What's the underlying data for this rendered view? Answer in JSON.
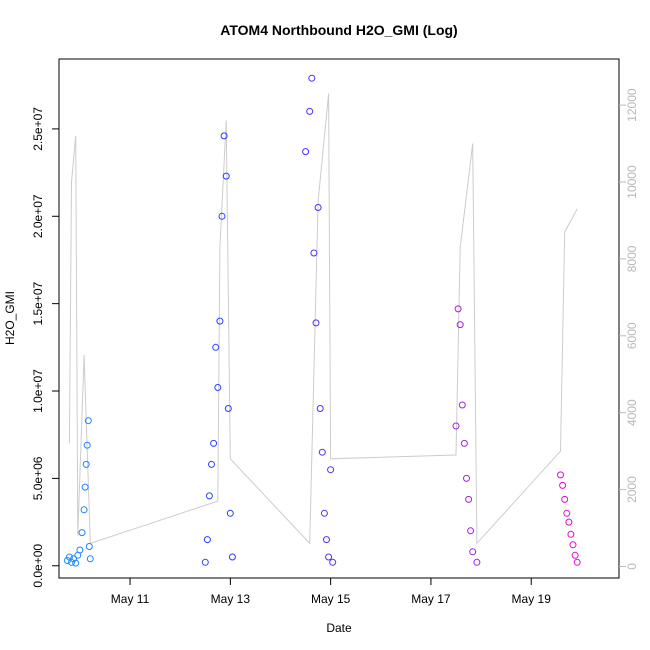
{
  "chart_data": {
    "type": "scatter",
    "title": "ATOM4 Northbound H2O_GMI (Log)",
    "xlabel": "Date",
    "ylabel": "H2O_GMI",
    "x_ticks": [
      "May 11",
      "May 13",
      "May 15",
      "May 17",
      "May 19"
    ],
    "y_ticks": [
      "0.0e+00",
      "5.0e+06",
      "1.0e+07",
      "1.5e+07",
      "2.0e+07",
      "2.5e+07"
    ],
    "y2_ticks": [
      "0",
      "2000",
      "4000",
      "6000",
      "8000",
      "10000",
      "12000"
    ],
    "xlim": [
      "2018-05-09T14:00",
      "2018-05-20T18:00"
    ],
    "ylim": [
      -700000,
      29000000
    ],
    "y2lim": [
      -300,
      13200
    ],
    "legend": "none",
    "grid": false,
    "colors": {
      "altitude_line": "#cccccc",
      "gradient_start": "#1e90ff",
      "gradient_mid": "#3030ff",
      "gradient_late": "#8a2be2",
      "gradient_end": "#ff00cc",
      "right_axis": "#b8b8b8"
    },
    "series": [
      {
        "values": [
          {
            "x": "2018-05-09T18:00",
            "y": 300000
          },
          {
            "x": "2018-05-09T19:00",
            "y": 500000
          },
          {
            "x": "2018-05-09T20:00",
            "y": 200000
          },
          {
            "x": "2018-05-09T21:00",
            "y": 400000
          },
          {
            "x": "2018-05-09T22:00",
            "y": 150000
          },
          {
            "x": "2018-05-09T23:00",
            "y": 600000
          },
          {
            "x": "2018-05-10T00:00",
            "y": 900000
          },
          {
            "x": "2018-05-10T01:00",
            "y": 1900000
          },
          {
            "x": "2018-05-10T02:00",
            "y": 3200000
          },
          {
            "x": "2018-05-10T02:30",
            "y": 4500000
          },
          {
            "x": "2018-05-10T03:00",
            "y": 5800000
          },
          {
            "x": "2018-05-10T03:30",
            "y": 6900000
          },
          {
            "x": "2018-05-10T04:00",
            "y": 8300000
          },
          {
            "x": "2018-05-10T04:30",
            "y": 1100000
          },
          {
            "x": "2018-05-10T05:00",
            "y": 400000
          },
          {
            "x": "2018-05-12T12:00",
            "y": 200000
          },
          {
            "x": "2018-05-12T13:00",
            "y": 1500000
          },
          {
            "x": "2018-05-12T14:00",
            "y": 4000000
          },
          {
            "x": "2018-05-12T15:00",
            "y": 5800000
          },
          {
            "x": "2018-05-12T16:00",
            "y": 7000000
          },
          {
            "x": "2018-05-12T17:00",
            "y": 12500000
          },
          {
            "x": "2018-05-12T18:00",
            "y": 10200000
          },
          {
            "x": "2018-05-12T19:00",
            "y": 14000000
          },
          {
            "x": "2018-05-12T20:00",
            "y": 20000000
          },
          {
            "x": "2018-05-12T21:00",
            "y": 24600000
          },
          {
            "x": "2018-05-12T22:00",
            "y": 22300000
          },
          {
            "x": "2018-05-12T23:00",
            "y": 9000000
          },
          {
            "x": "2018-05-13T00:00",
            "y": 3000000
          },
          {
            "x": "2018-05-13T01:00",
            "y": 500000
          },
          {
            "x": "2018-05-14T12:00",
            "y": 23700000
          },
          {
            "x": "2018-05-14T14:00",
            "y": 26000000
          },
          {
            "x": "2018-05-14T15:00",
            "y": 27900000
          },
          {
            "x": "2018-05-14T16:00",
            "y": 17900000
          },
          {
            "x": "2018-05-14T17:00",
            "y": 13900000
          },
          {
            "x": "2018-05-14T18:00",
            "y": 20500000
          },
          {
            "x": "2018-05-14T19:00",
            "y": 9000000
          },
          {
            "x": "2018-05-14T20:00",
            "y": 6500000
          },
          {
            "x": "2018-05-14T21:00",
            "y": 3000000
          },
          {
            "x": "2018-05-14T22:00",
            "y": 1500000
          },
          {
            "x": "2018-05-14T23:00",
            "y": 500000
          },
          {
            "x": "2018-05-15T00:00",
            "y": 5500000
          },
          {
            "x": "2018-05-15T01:00",
            "y": 200000
          },
          {
            "x": "2018-05-17T12:00",
            "y": 8000000
          },
          {
            "x": "2018-05-17T13:00",
            "y": 14700000
          },
          {
            "x": "2018-05-17T14:00",
            "y": 13800000
          },
          {
            "x": "2018-05-17T15:00",
            "y": 9200000
          },
          {
            "x": "2018-05-17T16:00",
            "y": 7000000
          },
          {
            "x": "2018-05-17T17:00",
            "y": 5000000
          },
          {
            "x": "2018-05-17T18:00",
            "y": 3800000
          },
          {
            "x": "2018-05-17T19:00",
            "y": 2000000
          },
          {
            "x": "2018-05-17T20:00",
            "y": 800000
          },
          {
            "x": "2018-05-17T22:00",
            "y": 200000
          },
          {
            "x": "2018-05-19T14:00",
            "y": 5200000
          },
          {
            "x": "2018-05-19T15:00",
            "y": 4600000
          },
          {
            "x": "2018-05-19T16:00",
            "y": 3800000
          },
          {
            "x": "2018-05-19T17:00",
            "y": 3000000
          },
          {
            "x": "2018-05-19T18:00",
            "y": 2500000
          },
          {
            "x": "2018-05-19T19:00",
            "y": 1800000
          },
          {
            "x": "2018-05-19T20:00",
            "y": 1200000
          },
          {
            "x": "2018-05-19T21:00",
            "y": 600000
          },
          {
            "x": "2018-05-19T22:00",
            "y": 200000
          }
        ]
      },
      {
        "axis": "right",
        "values": [
          {
            "x": "2018-05-09T19:00",
            "y": 3200
          },
          {
            "x": "2018-05-09T20:00",
            "y": 10000
          },
          {
            "x": "2018-05-09T22:00",
            "y": 11200
          },
          {
            "x": "2018-05-09T23:00",
            "y": 800
          },
          {
            "x": "2018-05-10T02:00",
            "y": 5500
          },
          {
            "x": "2018-05-10T05:00",
            "y": 600
          },
          {
            "x": "2018-05-12T18:00",
            "y": 1700
          },
          {
            "x": "2018-05-12T19:00",
            "y": 8300
          },
          {
            "x": "2018-05-12T22:00",
            "y": 11600
          },
          {
            "x": "2018-05-13T00:00",
            "y": 2800
          },
          {
            "x": "2018-05-14T14:00",
            "y": 600
          },
          {
            "x": "2018-05-14T18:00",
            "y": 9500
          },
          {
            "x": "2018-05-14T23:00",
            "y": 12300
          },
          {
            "x": "2018-05-15T00:00",
            "y": 2800
          },
          {
            "x": "2018-05-17T12:00",
            "y": 2900
          },
          {
            "x": "2018-05-17T14:00",
            "y": 8300
          },
          {
            "x": "2018-05-17T20:00",
            "y": 11000
          },
          {
            "x": "2018-05-17T22:00",
            "y": 600
          },
          {
            "x": "2018-05-19T14:00",
            "y": 3000
          },
          {
            "x": "2018-05-19T16:00",
            "y": 8700
          },
          {
            "x": "2018-05-19T22:00",
            "y": 9300
          }
        ]
      }
    ]
  }
}
